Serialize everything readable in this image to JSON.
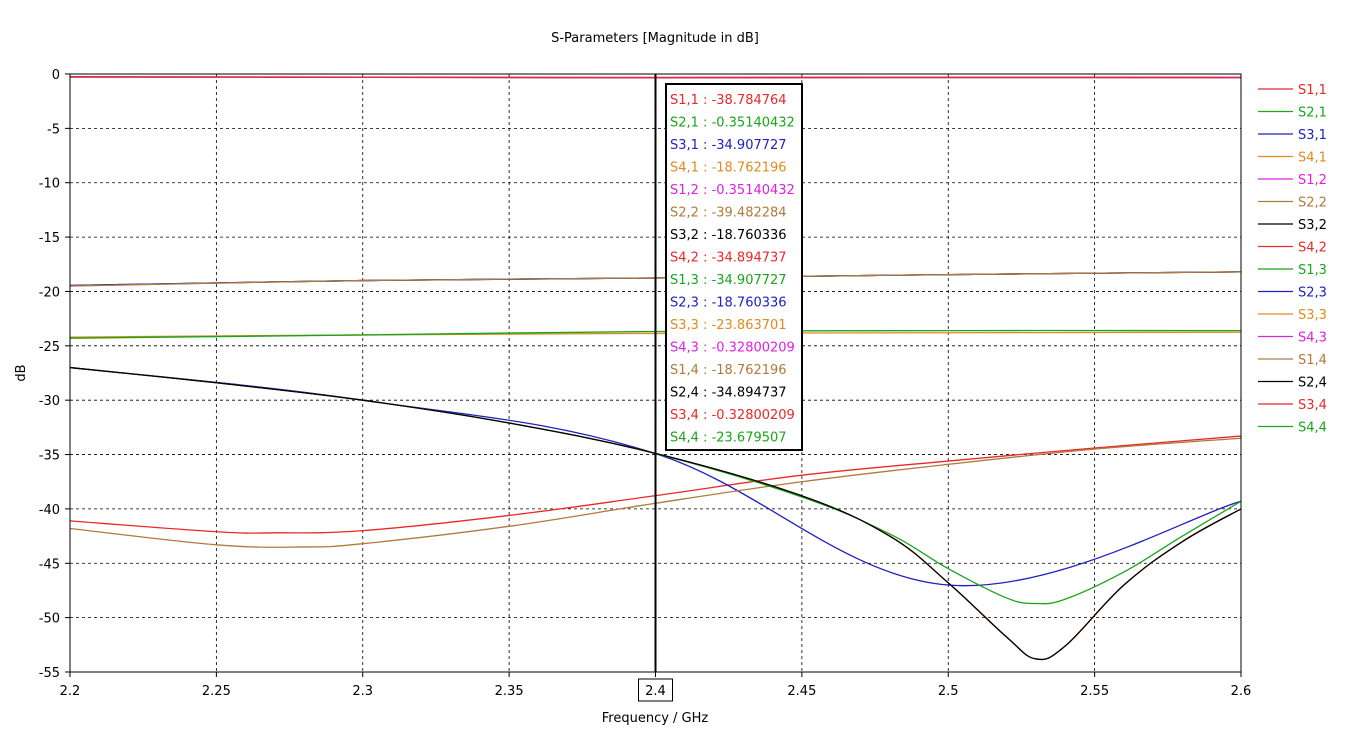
{
  "chart_data": {
    "type": "line",
    "title": "S-Parameters [Magnitude in dB]",
    "xlabel": "Frequency / GHz",
    "ylabel": "dB",
    "xlim": [
      2.2,
      2.6
    ],
    "ylim": [
      -55,
      0
    ],
    "xticks": [
      "2.2",
      "2.25",
      "2.3",
      "2.35",
      "2.4",
      "2.45",
      "2.5",
      "2.55",
      "2.6"
    ],
    "xtick_values": [
      2.2,
      2.25,
      2.3,
      2.35,
      2.4,
      2.45,
      2.5,
      2.55,
      2.6
    ],
    "yticks": [
      "0",
      "-5",
      "-10",
      "-15",
      "-20",
      "-25",
      "-30",
      "-35",
      "-40",
      "-45",
      "-50",
      "-55"
    ],
    "ytick_values": [
      0,
      -5,
      -10,
      -15,
      -20,
      -25,
      -30,
      -35,
      -40,
      -45,
      -50,
      -55
    ],
    "grid": true,
    "grid_style": "dashed",
    "legend_position": "right",
    "marker": {
      "x": 2.4,
      "x_label": "2.4",
      "readout": [
        {
          "label": "S1,1 : -38.784764",
          "color": "#e8282a"
        },
        {
          "label": "S2,1 : -0.35140432",
          "color": "#1aa51a"
        },
        {
          "label": "S3,1 : -34.907727",
          "color": "#2020c0"
        },
        {
          "label": "S4,1 : -18.762196",
          "color": "#e08a20"
        },
        {
          "label": "S1,2 : -0.35140432",
          "color": "#e020e0"
        },
        {
          "label": "S2,2 : -39.482284",
          "color": "#b07a3c"
        },
        {
          "label": "S3,2 : -18.760336",
          "color": "#000000"
        },
        {
          "label": "S4,2 : -34.894737",
          "color": "#e8282a"
        },
        {
          "label": "S1,3 : -34.907727",
          "color": "#1aa51a"
        },
        {
          "label": "S2,3 : -18.760336",
          "color": "#2020c0"
        },
        {
          "label": "S3,3 : -23.863701",
          "color": "#e08a20"
        },
        {
          "label": "S4,3 : -0.32800209",
          "color": "#e020e0"
        },
        {
          "label": "S1,4 : -18.762196",
          "color": "#b07a3c"
        },
        {
          "label": "S2,4 : -34.894737",
          "color": "#000000"
        },
        {
          "label": "S3,4 : -0.32800209",
          "color": "#e8282a"
        },
        {
          "label": "S4,4 : -23.679507",
          "color": "#1aa51a"
        }
      ]
    },
    "series": [
      {
        "name": "S1,1",
        "color": "#e8282a",
        "x": [
          2.2,
          2.25,
          2.27,
          2.3,
          2.35,
          2.4,
          2.45,
          2.5,
          2.55,
          2.6
        ],
        "y": [
          -41.1,
          -42.1,
          -42.2,
          -42.0,
          -40.6,
          -38.78,
          -36.9,
          -35.6,
          -34.4,
          -33.3
        ]
      },
      {
        "name": "S2,1",
        "color": "#1aa51a",
        "x": [
          2.2,
          2.3,
          2.4,
          2.48,
          2.6
        ],
        "y": [
          -0.28,
          -0.3,
          -0.351,
          -0.33,
          -0.34
        ]
      },
      {
        "name": "S3,1",
        "color": "#2020c0",
        "x": [
          2.2,
          2.3,
          2.4,
          2.5,
          2.6
        ],
        "y": [
          -27.0,
          -30.0,
          -34.91,
          -47.0,
          -39.3
        ]
      },
      {
        "name": "S4,1",
        "color": "#e08a20",
        "x": [
          2.2,
          2.3,
          2.4,
          2.5,
          2.6
        ],
        "y": [
          -19.5,
          -19.0,
          -18.76,
          -18.45,
          -18.2
        ]
      },
      {
        "name": "S1,2",
        "color": "#e020e0",
        "x": [
          2.2,
          2.3,
          2.4,
          2.48,
          2.5,
          2.6
        ],
        "y": [
          -0.28,
          -0.3,
          -0.351,
          -0.33,
          -0.33,
          -0.34
        ]
      },
      {
        "name": "S2,2",
        "color": "#b07a3c",
        "x": [
          2.2,
          2.25,
          2.28,
          2.3,
          2.35,
          2.4,
          2.45,
          2.5,
          2.55,
          2.6
        ],
        "y": [
          -41.8,
          -43.3,
          -43.5,
          -43.2,
          -41.6,
          -39.48,
          -37.5,
          -35.9,
          -34.5,
          -33.5
        ]
      },
      {
        "name": "S3,2",
        "color": "#000000",
        "x": [
          2.2,
          2.3,
          2.4,
          2.5,
          2.6
        ],
        "y": [
          -19.45,
          -19.0,
          -18.76,
          -18.45,
          -18.2
        ]
      },
      {
        "name": "S4,2",
        "color": "#e8282a",
        "x": [
          2.2,
          2.25,
          2.3,
          2.35,
          2.4,
          2.45,
          2.48,
          2.5,
          2.52,
          2.53,
          2.54,
          2.56,
          2.58,
          2.6
        ],
        "y": [
          -27.0,
          -28.4,
          -30.0,
          -32.1,
          -34.89,
          -38.8,
          -42.5,
          -46.8,
          -51.8,
          -53.8,
          -52.6,
          -47.0,
          -43.0,
          -40.0
        ]
      },
      {
        "name": "S1,3",
        "color": "#1aa51a",
        "x": [
          2.2,
          2.25,
          2.3,
          2.35,
          2.4,
          2.45,
          2.48,
          2.5,
          2.52,
          2.53,
          2.54,
          2.56,
          2.58,
          2.6
        ],
        "y": [
          -27.0,
          -28.4,
          -30.0,
          -32.1,
          -34.91,
          -38.9,
          -42.3,
          -45.5,
          -48.2,
          -48.7,
          -48.3,
          -45.8,
          -42.5,
          -39.3
        ]
      },
      {
        "name": "S2,3",
        "color": "#2020c0",
        "x": [
          2.2,
          2.3,
          2.4,
          2.5,
          2.6
        ],
        "y": [
          -19.45,
          -19.0,
          -18.76,
          -18.45,
          -18.2
        ]
      },
      {
        "name": "S3,3",
        "color": "#e08a20",
        "x": [
          2.2,
          2.3,
          2.4,
          2.5,
          2.6
        ],
        "y": [
          -24.2,
          -24.0,
          -23.86,
          -23.8,
          -23.75
        ]
      },
      {
        "name": "S4,3",
        "color": "#e020e0",
        "x": [
          2.2,
          2.3,
          2.4,
          2.48,
          2.5,
          2.6
        ],
        "y": [
          -0.26,
          -0.29,
          -0.328,
          -0.3,
          -0.3,
          -0.31
        ]
      },
      {
        "name": "S1,4",
        "color": "#b07a3c",
        "x": [
          2.2,
          2.3,
          2.4,
          2.5,
          2.6
        ],
        "y": [
          -19.5,
          -19.0,
          -18.76,
          -18.45,
          -18.2
        ]
      },
      {
        "name": "S2,4",
        "color": "#000000",
        "x": [
          2.2,
          2.25,
          2.3,
          2.35,
          2.4,
          2.45,
          2.48,
          2.5,
          2.52,
          2.53,
          2.54,
          2.56,
          2.58,
          2.6
        ],
        "y": [
          -27.0,
          -28.4,
          -30.0,
          -32.1,
          -34.89,
          -38.8,
          -42.5,
          -46.8,
          -51.8,
          -53.8,
          -52.6,
          -47.0,
          -43.0,
          -40.0
        ]
      },
      {
        "name": "S3,4",
        "color": "#e8282a",
        "x": [
          2.2,
          2.3,
          2.4,
          2.48,
          2.6
        ],
        "y": [
          -0.26,
          -0.29,
          -0.328,
          -0.3,
          -0.31
        ]
      },
      {
        "name": "S4,4",
        "color": "#1aa51a",
        "x": [
          2.2,
          2.3,
          2.4,
          2.5,
          2.6
        ],
        "y": [
          -24.3,
          -24.0,
          -23.68,
          -23.6,
          -23.6
        ]
      }
    ]
  }
}
